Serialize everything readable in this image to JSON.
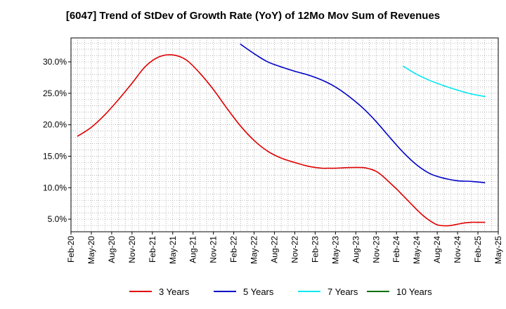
{
  "chart_data": {
    "type": "line",
    "title": "[6047]  Trend of StDev of Growth Rate (YoY) of 12Mo Mov Sum of Revenues",
    "xlabel": "",
    "ylabel": "",
    "x_tick_labels": [
      "Feb-20",
      "May-20",
      "Aug-20",
      "Nov-20",
      "Feb-21",
      "May-21",
      "Aug-21",
      "Nov-21",
      "Feb-22",
      "May-22",
      "Aug-22",
      "Nov-22",
      "Feb-23",
      "May-23",
      "Aug-23",
      "Nov-23",
      "Feb-24",
      "May-24",
      "Aug-24",
      "Nov-24",
      "Feb-25",
      "May-25"
    ],
    "y_ticks": [
      5.0,
      10.0,
      15.0,
      20.0,
      25.0,
      30.0
    ],
    "y_tick_labels": [
      "5.0%",
      "10.0%",
      "15.0%",
      "20.0%",
      "25.0%",
      "30.0%"
    ],
    "ylim": [
      3.0,
      33.8
    ],
    "x_month_range": [
      0,
      63
    ],
    "grid": true,
    "legend_position": "bottom",
    "series": [
      {
        "name": "3 Years",
        "color": "#e00000",
        "x": [
          1,
          3,
          5,
          7,
          9,
          11,
          13,
          15,
          17,
          19,
          21,
          23,
          25,
          27,
          29,
          31,
          33,
          35,
          37,
          38,
          39,
          41,
          43,
          44,
          45,
          46,
          47,
          48,
          49,
          50,
          51,
          52,
          53,
          54,
          55,
          56,
          57,
          58,
          59,
          60,
          61
        ],
        "values": [
          18.2,
          19.6,
          21.6,
          24.0,
          26.6,
          29.3,
          30.8,
          31.1,
          30.3,
          28.2,
          25.6,
          22.6,
          19.8,
          17.5,
          15.8,
          14.7,
          14.0,
          13.4,
          13.1,
          13.1,
          13.1,
          13.2,
          13.2,
          13.0,
          12.6,
          11.8,
          10.8,
          9.8,
          8.7,
          7.6,
          6.5,
          5.5,
          4.7,
          4.1,
          3.95,
          4.0,
          4.2,
          4.4,
          4.5,
          4.5,
          4.5
        ]
      },
      {
        "name": "5 Years",
        "color": "#0000c8",
        "x": [
          25,
          27,
          29,
          31,
          33,
          35,
          37,
          39,
          41,
          43,
          45,
          47,
          49,
          51,
          53,
          55,
          57,
          59,
          61
        ],
        "values": [
          32.8,
          31.3,
          30.0,
          29.2,
          28.5,
          27.9,
          27.1,
          26.0,
          24.5,
          22.7,
          20.5,
          18.0,
          15.6,
          13.6,
          12.2,
          11.5,
          11.1,
          11.0,
          10.8
        ]
      },
      {
        "name": "7 Years",
        "color": "#00e8f0",
        "x": [
          49,
          51,
          53,
          55,
          57,
          59,
          61
        ],
        "values": [
          29.3,
          28.0,
          27.0,
          26.2,
          25.5,
          24.9,
          24.5
        ]
      },
      {
        "name": "10 Years",
        "color": "#007000",
        "x": [],
        "values": []
      }
    ]
  }
}
